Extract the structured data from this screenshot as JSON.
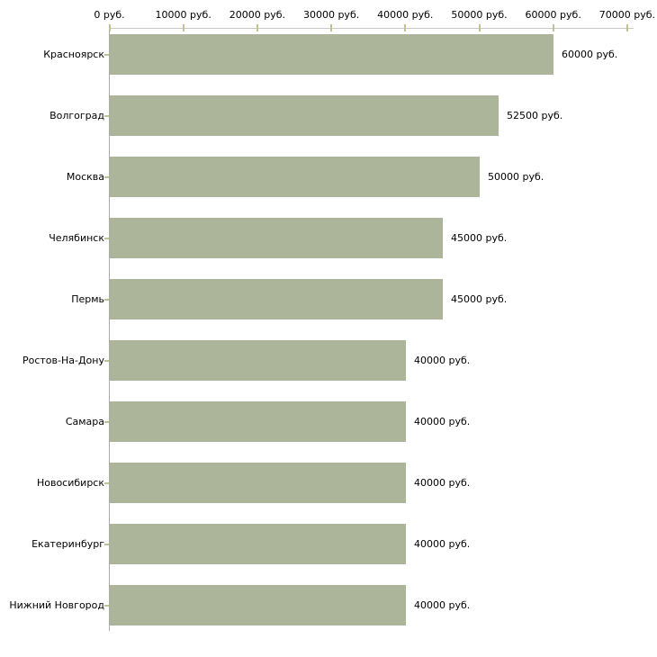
{
  "chart_data": {
    "type": "bar",
    "orientation": "horizontal",
    "title": "",
    "xlabel": "",
    "ylabel": "",
    "unit": "руб.",
    "categories": [
      "Красноярск",
      "Волгоград",
      "Москва",
      "Челябинск",
      "Пермь",
      "Ростов-На-Дону",
      "Самара",
      "Новосибирск",
      "Екатеринбург",
      "Нижний Новгород"
    ],
    "values": [
      60000,
      52500,
      50000,
      45000,
      45000,
      40000,
      40000,
      40000,
      40000,
      40000
    ],
    "bar_labels": [
      "60000 руб.",
      "52500 руб.",
      "50000 руб.",
      "45000 руб.",
      "45000 руб.",
      "40000 руб.",
      "40000 руб.",
      "40000 руб.",
      "40000 руб.",
      "40000 руб."
    ],
    "x_axis": {
      "position": "top",
      "range": [
        0,
        70000
      ],
      "ticks": [
        0,
        10000,
        20000,
        30000,
        40000,
        50000,
        60000,
        70000
      ],
      "tick_labels": [
        "0 руб.",
        "10000 руб.",
        "20000 руб.",
        "30000 руб.",
        "40000 руб.",
        "50000 руб.",
        "60000 руб.",
        "70000 руб."
      ]
    },
    "grid": false,
    "legend": false,
    "colors": {
      "bar": "#acb499",
      "axis_line": "#c9c9c9",
      "axis": "#ababab",
      "tick": "#c2c291",
      "text": "#000000",
      "background": "#ffffff"
    }
  }
}
